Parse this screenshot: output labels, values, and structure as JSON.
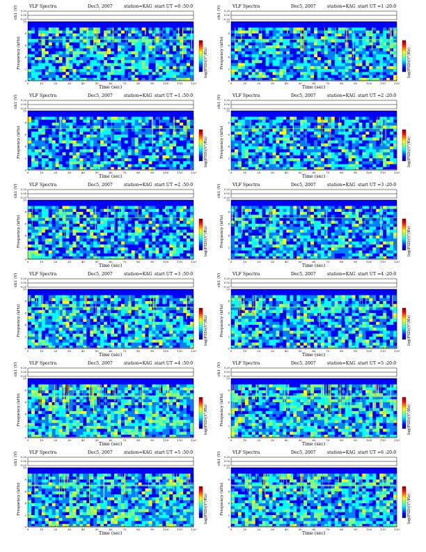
{
  "chart_data": [
    {
      "type": "heatmap",
      "title": "VLF Spectra",
      "date": "Dec5, 2007",
      "station": "station=KAG",
      "start": "start  UT =0 :50:0",
      "xlabel": "Time  (sec)",
      "ylabel_top": "ch1 (V)",
      "ylabel_main": "Frequency  (kHz)",
      "colorbar_label": "log(PSD)(V²/Hz)",
      "xlim": [
        0,
        120
      ],
      "ylim": [
        0,
        10
      ],
      "top_ylim": [
        -0.2,
        0.2
      ],
      "band_khz": [
        0,
        9
      ],
      "intensity": "medium"
    },
    {
      "type": "heatmap",
      "title": "VLF Spectra",
      "date": "Dec5, 2007",
      "station": "station=KAG",
      "start": "start  UT =1 :20:0",
      "xlabel": "Time  (sec)",
      "ylabel_top": "ch1 (V)",
      "ylabel_main": "Frequency  (kHz)",
      "colorbar_label": "log(PSD)(V²/Hz)",
      "xlim": [
        0,
        120
      ],
      "ylim": [
        0,
        10
      ],
      "top_ylim": [
        -0.2,
        0.2
      ],
      "band_khz": [
        0,
        9
      ],
      "intensity": "medium"
    },
    {
      "type": "heatmap",
      "title": "VLF Spectra",
      "date": "Dec5, 2007",
      "station": "station=KAG",
      "start": "start  UT =1 :50:0",
      "xlabel": "Time  (sec)",
      "ylabel_top": "ch1 (V)",
      "ylabel_main": "Frequency  (kHz)",
      "colorbar_label": "log(PSD)(V²/Hz)",
      "xlim": [
        0,
        120
      ],
      "ylim": [
        0,
        10
      ],
      "top_ylim": [
        -0.2,
        0.2
      ],
      "band_khz": [
        0,
        9
      ],
      "intensity": "low"
    },
    {
      "type": "heatmap",
      "title": "VLF Spectra",
      "date": "Dec5, 2007",
      "station": "station=KAG",
      "start": "start  UT =2 :20:0",
      "xlabel": "Time  (sec)",
      "ylabel_top": "ch1 (V)",
      "ylabel_main": "Frequency  (kHz)",
      "colorbar_label": "log(PSD)(V²/Hz)",
      "xlim": [
        0,
        120
      ],
      "ylim": [
        0,
        10
      ],
      "top_ylim": [
        -0.2,
        0.2
      ],
      "band_khz": [
        0,
        9
      ],
      "intensity": "low"
    },
    {
      "type": "heatmap",
      "title": "VLF Spectra",
      "date": "Dec5, 2007",
      "station": "station=KAG",
      "start": "start  UT =2 :50:0",
      "xlabel": "Time  (sec)",
      "ylabel_top": "ch1 (V)",
      "ylabel_main": "Frequency  (kHz)",
      "colorbar_label": "log(PSD)(V²/Hz)",
      "xlim": [
        0,
        120
      ],
      "ylim": [
        0,
        10
      ],
      "top_ylim": [
        -0.2,
        0.2
      ],
      "band_khz": [
        0,
        9
      ],
      "intensity": "low"
    },
    {
      "type": "heatmap",
      "title": "VLF Spectra",
      "date": "Dec5, 2007",
      "station": "station=KAG",
      "start": "start  UT =3 :20:0",
      "xlabel": "Time  (sec)",
      "ylabel_top": "ch1 (V)",
      "ylabel_main": "Frequency  (kHz)",
      "colorbar_label": "log(PSD)(V²/Hz)",
      "xlim": [
        0,
        120
      ],
      "ylim": [
        0,
        10
      ],
      "top_ylim": [
        -0.2,
        0.2
      ],
      "band_khz": [
        0,
        9
      ],
      "intensity": "low"
    },
    {
      "type": "heatmap",
      "title": "VLF Spectra",
      "date": "Dec5, 2007",
      "station": "station=KAG",
      "start": "start  UT =3 :50:0",
      "xlabel": "Time  (sec)",
      "ylabel_top": "ch1 (V)",
      "ylabel_main": "Frequency  (kHz)",
      "colorbar_label": "log(PSD)(V²/Hz)",
      "xlim": [
        0,
        120
      ],
      "ylim": [
        0,
        10
      ],
      "top_ylim": [
        -0.2,
        0.2
      ],
      "band_khz": [
        0,
        9
      ],
      "intensity": "medium"
    },
    {
      "type": "heatmap",
      "title": "VLF Spectra",
      "date": "Dec5, 2007",
      "station": "station=KAG",
      "start": "start  UT =4 :20:0",
      "xlabel": "Time  (sec)",
      "ylabel_top": "ch1 (V)",
      "ylabel_main": "Frequency  (kHz)",
      "colorbar_label": "log(PSD)(V²/Hz)",
      "xlim": [
        0,
        120
      ],
      "ylim": [
        0,
        10
      ],
      "top_ylim": [
        -0.2,
        0.2
      ],
      "band_khz": [
        0,
        9
      ],
      "intensity": "medium"
    },
    {
      "type": "heatmap",
      "title": "VLF Spectra",
      "date": "Dec5, 2007",
      "station": "station=KAG",
      "start": "start  UT =4 :50:0",
      "xlabel": "Time  (sec)",
      "ylabel_top": "ch1 (V)",
      "ylabel_main": "Frequency  (kHz)",
      "colorbar_label": "log(PSD)(V²/Hz)",
      "xlim": [
        0,
        120
      ],
      "ylim": [
        0,
        10
      ],
      "top_ylim": [
        -0.2,
        0.2
      ],
      "band_khz": [
        0,
        9
      ],
      "intensity": "high"
    },
    {
      "type": "heatmap",
      "title": "VLF Spectra",
      "date": "Dec5, 2007",
      "station": "station=KAG",
      "start": "start  UT =5 :20:0",
      "xlabel": "Time  (sec)",
      "ylabel_top": "ch1 (V)",
      "ylabel_main": "Frequency  (kHz)",
      "colorbar_label": "log(PSD)(V²/Hz)",
      "xlim": [
        0,
        120
      ],
      "ylim": [
        0,
        10
      ],
      "top_ylim": [
        -0.2,
        0.2
      ],
      "band_khz": [
        0,
        9
      ],
      "intensity": "high"
    },
    {
      "type": "heatmap",
      "title": "VLF Spectra",
      "date": "Dec5, 2007",
      "station": "station=KAG",
      "start": "start  UT =5 :50:0",
      "xlabel": "Time  (sec)",
      "ylabel_top": "ch1 (V)",
      "ylabel_main": "Frequency  (kHz)",
      "colorbar_label": "log(PSD)(V²/Hz)",
      "xlim": [
        0,
        120
      ],
      "ylim": [
        0,
        10
      ],
      "top_ylim": [
        -0.2,
        0.2
      ],
      "band_khz": [
        0,
        9
      ],
      "intensity": "high"
    },
    {
      "type": "heatmap",
      "title": "VLF Spectra",
      "date": "Dec5, 2007",
      "station": "station=KAG",
      "start": "start  UT =6 :20:0",
      "xlabel": "Time  (sec)",
      "ylabel_top": "ch1 (V)",
      "ylabel_main": "Frequency  (kHz)",
      "colorbar_label": "log(PSD)(V²/Hz)",
      "xlim": [
        0,
        120
      ],
      "ylim": [
        0,
        10
      ],
      "top_ylim": [
        -0.2,
        0.2
      ],
      "band_khz": [
        0,
        9
      ],
      "intensity": "high"
    }
  ],
  "axes": {
    "xticks": [
      0,
      10,
      20,
      30,
      40,
      50,
      60,
      70,
      80,
      90,
      100,
      110,
      120
    ],
    "yticks": [
      0,
      2,
      4,
      6,
      8,
      10
    ],
    "top_yticks": [
      "0.20",
      "0.00",
      "-0.20"
    ]
  },
  "colors": {
    "jet": [
      "#00008f",
      "#0000ff",
      "#0080ff",
      "#00ffff",
      "#80ff80",
      "#ffff00",
      "#ff8000",
      "#ff0000",
      "#800000"
    ]
  }
}
